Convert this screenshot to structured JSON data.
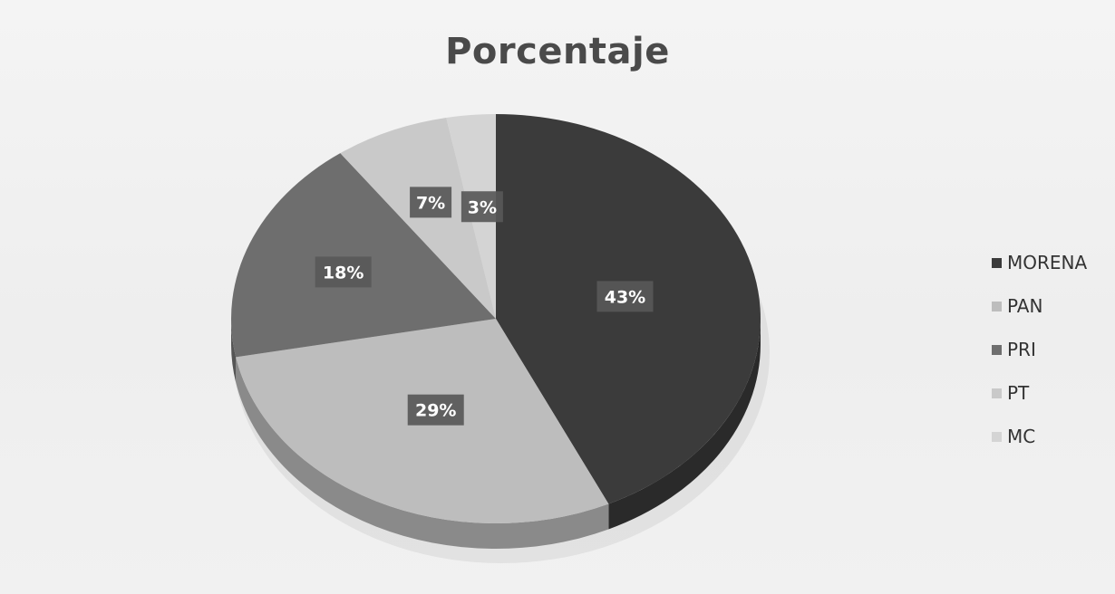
{
  "chart_data": {
    "type": "pie",
    "title": "Porcentaje",
    "categories": [
      "MORENA",
      "PAN",
      "PRI",
      "PT",
      "MC"
    ],
    "values": [
      43,
      29,
      18,
      7,
      3
    ],
    "data_labels": [
      "43%",
      "29%",
      "18%",
      "7%",
      "3%"
    ],
    "colors": [
      "#3b3b3b",
      "#bdbdbd",
      "#6e6e6e",
      "#c9c9c9",
      "#d4d4d4"
    ],
    "side_colors": [
      "#2a2a2a",
      "#8a8a8a",
      "#555555",
      "#a0a0a0",
      "#aaaaaa"
    ],
    "legend": {
      "position": "right",
      "entries": [
        "MORENA",
        "PAN",
        "PRI",
        "PT",
        "MC"
      ]
    },
    "style": "3d"
  }
}
